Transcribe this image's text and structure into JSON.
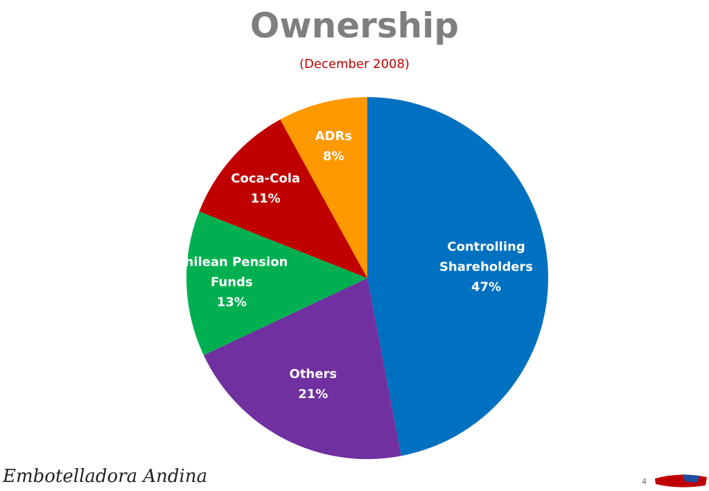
{
  "chart_data": {
    "type": "pie",
    "title": "Ownership",
    "subtitle": "(December 2008)",
    "categories": [
      "Controlling Shareholders",
      "Others",
      "Chilean Pension Funds",
      "Coca-Cola",
      "ADRs"
    ],
    "values": [
      47,
      21,
      13,
      11,
      8
    ],
    "value_labels": [
      "47%",
      "21%",
      "13%",
      "11%",
      "8%"
    ],
    "colors": [
      "#0070c0",
      "#7030a0",
      "#00b050",
      "#c00000",
      "#ff9900"
    ]
  },
  "footer": {
    "logo": "Embotelladora Andina",
    "page": "4"
  }
}
